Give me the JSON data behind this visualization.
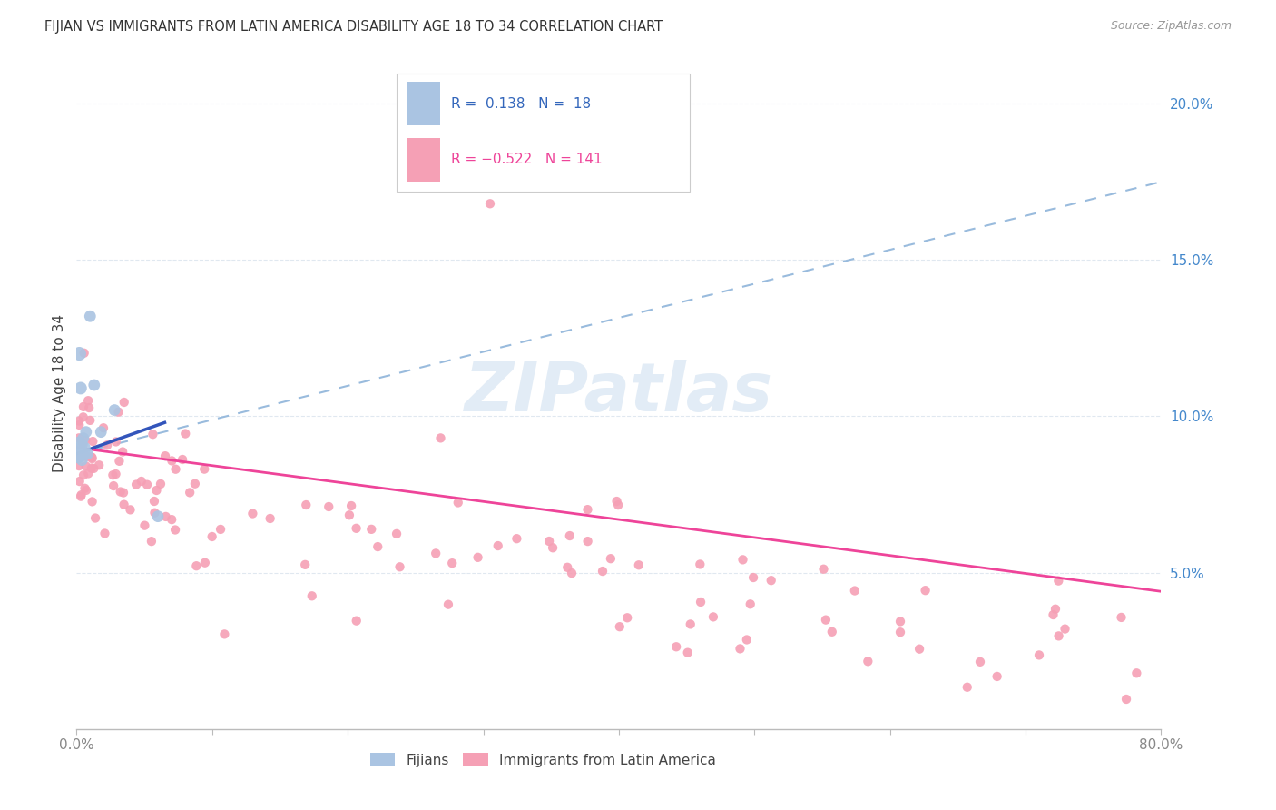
{
  "title": "FIJIAN VS IMMIGRANTS FROM LATIN AMERICA DISABILITY AGE 18 TO 34 CORRELATION CHART",
  "source": "Source: ZipAtlas.com",
  "ylabel": "Disability Age 18 to 34",
  "ytick_labels": [
    "",
    "5.0%",
    "10.0%",
    "15.0%",
    "20.0%"
  ],
  "ytick_values": [
    0.0,
    0.05,
    0.1,
    0.15,
    0.2
  ],
  "xmin": 0.0,
  "xmax": 0.8,
  "ymin": 0.0,
  "ymax": 0.215,
  "fijian_R": 0.138,
  "fijian_N": 18,
  "latin_R": -0.522,
  "latin_N": 141,
  "fijian_color": "#aac4e2",
  "latin_color": "#f5a0b5",
  "fijian_line_color": "#3355BB",
  "fijian_dash_color": "#99BBDD",
  "latin_line_color": "#EE4499",
  "watermark_color": "#D0E0F0",
  "grid_color": "#E0E8F0",
  "ytick_color": "#4488CC",
  "xtick_color": "#888888",
  "title_color": "#333333",
  "source_color": "#999999",
  "legend_border_color": "#CCCCCC",
  "fijian_legend_text_color": "#3366BB",
  "latin_legend_text_color": "#EE4499"
}
